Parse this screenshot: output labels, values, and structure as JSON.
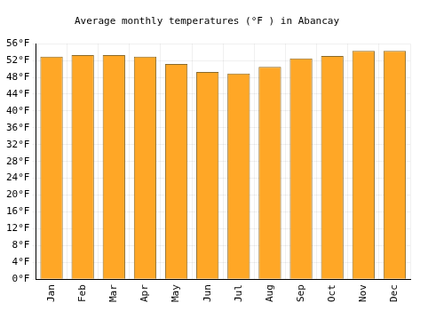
{
  "chart_data": {
    "type": "bar",
    "title": "Average monthly temperatures (°F ) in Abancay",
    "categories": [
      "Jan",
      "Feb",
      "Mar",
      "Apr",
      "May",
      "Jun",
      "Jul",
      "Aug",
      "Sep",
      "Oct",
      "Nov",
      "Dec"
    ],
    "values": [
      52.9,
      53.3,
      53.3,
      52.9,
      51.2,
      49.3,
      48.9,
      50.5,
      52.5,
      53.1,
      54.3,
      54.3
    ],
    "color": "#ffa726",
    "ylim": [
      0,
      56
    ],
    "yticks": [
      {
        "value": 0,
        "label": "0°F"
      },
      {
        "value": 4,
        "label": "4°F"
      },
      {
        "value": 8,
        "label": "8°F"
      },
      {
        "value": 12,
        "label": "12°F"
      },
      {
        "value": 16,
        "label": "16°F"
      },
      {
        "value": 20,
        "label": "20°F"
      },
      {
        "value": 24,
        "label": "24°F"
      },
      {
        "value": 28,
        "label": "28°F"
      },
      {
        "value": 32,
        "label": "32°F"
      },
      {
        "value": 36,
        "label": "36°F"
      },
      {
        "value": 40,
        "label": "40°F"
      },
      {
        "value": 44,
        "label": "44°F"
      },
      {
        "value": 48,
        "label": "48°F"
      },
      {
        "value": 52,
        "label": "52°F"
      },
      {
        "value": 56,
        "label": "56°F"
      }
    ],
    "grid": true
  }
}
